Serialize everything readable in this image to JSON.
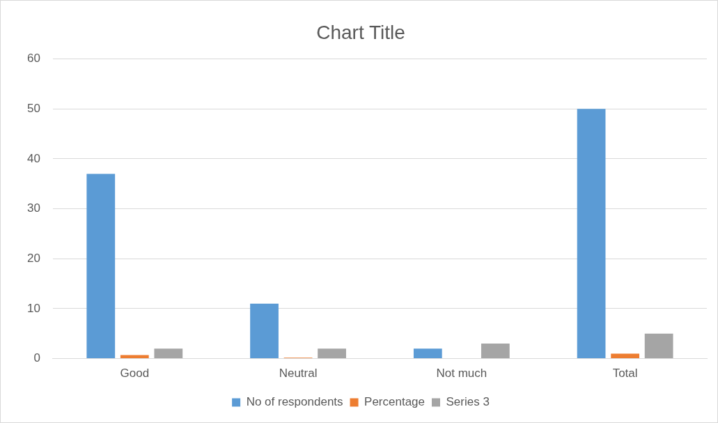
{
  "chart_data": {
    "type": "bar",
    "title": "Chart Title",
    "categories": [
      "Good",
      "Neutral",
      "Not much",
      "Total"
    ],
    "series": [
      {
        "name": "No of respondents",
        "color": "#5b9bd5",
        "values": [
          37,
          11,
          2,
          50
        ]
      },
      {
        "name": "Percentage",
        "color": "#ed7d31",
        "values": [
          0.7,
          0.2,
          0,
          1
        ]
      },
      {
        "name": "Series 3",
        "color": "#a5a5a5",
        "values": [
          2,
          2,
          3,
          5
        ]
      }
    ],
    "ylim": [
      0,
      60
    ],
    "yticks": [
      0,
      10,
      20,
      30,
      40,
      50,
      60
    ],
    "grid": "y",
    "legend": "bottom"
  }
}
